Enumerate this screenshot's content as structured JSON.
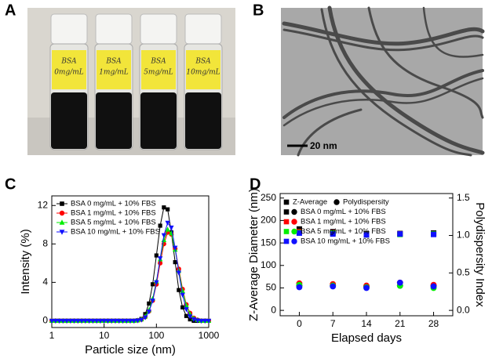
{
  "panel_labels": [
    "A",
    "B",
    "C",
    "D"
  ],
  "vial_labels": [
    [
      "BSA",
      "0mg/mL"
    ],
    [
      "BSA",
      "1mg/mL"
    ],
    [
      "BSA",
      "5mg/mL"
    ],
    [
      "BSA",
      "10mg/mL"
    ]
  ],
  "scale_bar": "20 nm",
  "chart_data": [
    {
      "type": "line",
      "xlabel": "Particle size (nm)",
      "ylabel": "Intensity (%)",
      "xscale": "log",
      "xlim": [
        1,
        1000
      ],
      "xticks": [
        1,
        10,
        100,
        1000
      ],
      "ylim": [
        -0.7,
        13
      ],
      "yticks": [
        0,
        4,
        8,
        12
      ],
      "legend": "upper left",
      "x": [
        1,
        1.18,
        1.39,
        1.64,
        1.93,
        2.28,
        2.68,
        3.16,
        3.73,
        4.39,
        5.18,
        6.11,
        7.2,
        8.48,
        10,
        11.8,
        13.9,
        16.4,
        19.3,
        22.8,
        26.8,
        31.6,
        37.3,
        43.9,
        51.8,
        61.1,
        72,
        84.8,
        100,
        118,
        139,
        164,
        193,
        228,
        268,
        316,
        373,
        439,
        518,
        611,
        720,
        848,
        1000
      ],
      "series": [
        {
          "name": "BSA 0 mg/mL + 10% FBS",
          "color": "#000000",
          "marker": "square",
          "values": [
            0,
            0,
            0,
            0,
            0,
            0,
            0,
            0,
            0,
            0,
            0,
            0,
            0,
            0,
            0,
            0,
            0,
            0,
            0,
            0,
            0,
            0,
            0,
            0.05,
            0.2,
            0.7,
            1.8,
            3.8,
            6.8,
            9.9,
            11.8,
            11.6,
            9.2,
            6.1,
            3.2,
            1.4,
            0.5,
            0.15,
            0,
            0,
            0,
            0,
            0
          ]
        },
        {
          "name": "BSA 1 mg/mL + 10% FBS",
          "color": "#ff0000",
          "marker": "circle",
          "values": [
            0,
            0,
            0,
            0,
            0,
            0,
            0,
            0,
            0,
            0,
            0,
            0,
            0,
            0,
            0,
            0,
            0,
            0,
            0,
            0,
            0,
            0,
            0,
            0.04,
            0.13,
            0.4,
            1.0,
            2.1,
            3.8,
            6.0,
            8.0,
            9.2,
            9.0,
            7.5,
            5.4,
            3.3,
            1.7,
            0.8,
            0.3,
            0.1,
            0,
            0,
            0
          ]
        },
        {
          "name": "BSA 5 mg/mL + 10% FBS",
          "color": "#00ee00",
          "marker": "triangle-up",
          "values": [
            0,
            0,
            0,
            0,
            0,
            0,
            0,
            0,
            0,
            0,
            0,
            0,
            0,
            0,
            0,
            0,
            0,
            0,
            0,
            0,
            0,
            0,
            0,
            0.05,
            0.15,
            0.45,
            1.1,
            2.3,
            4.1,
            6.4,
            8.4,
            9.5,
            9.1,
            7.4,
            5.2,
            3.1,
            1.6,
            0.7,
            0.25,
            0.08,
            0,
            0,
            0
          ]
        },
        {
          "name": "BSA 10 mg/mL + 10% FBS",
          "color": "#1010ff",
          "marker": "triangle-down",
          "values": [
            0,
            0,
            0,
            0,
            0,
            0,
            0,
            0,
            0,
            0,
            0,
            0,
            0,
            0,
            0,
            0,
            0,
            0,
            0,
            0,
            0,
            0,
            0,
            0.03,
            0.1,
            0.35,
            0.95,
            2.1,
            4.0,
            6.5,
            8.9,
            10.2,
            9.7,
            7.6,
            5.0,
            2.7,
            1.2,
            0.45,
            0.15,
            0.04,
            0,
            0,
            0
          ]
        }
      ]
    },
    {
      "type": "scatter",
      "xlabel": "Elapsed days",
      "ylabel": "Z-Average Diameter (nm)",
      "y2label": "Polydispersity Index",
      "legend_markers": [
        "Z-Average",
        "Polydispersity"
      ],
      "legend": "upper left",
      "x": [
        0,
        7,
        14,
        21,
        28
      ],
      "xlim": [
        -4,
        32
      ],
      "xticks": [
        0,
        7,
        14,
        21,
        28
      ],
      "ylim": [
        -12,
        260
      ],
      "yticks": [
        0,
        50,
        100,
        150,
        200,
        250
      ],
      "y2lim": [
        -0.072,
        1.56
      ],
      "y2ticks": [
        {
          "value": 0,
          "label": "0.0"
        },
        0.5,
        {
          "value": 1,
          "label": "1.0"
        },
        1.5
      ],
      "series": [
        {
          "name": "BSA 0 mg/mL + 10% FBS",
          "color": "#000000",
          "values": [
            181,
            175,
            170,
            171,
            172
          ],
          "pdi": [
            0.33,
            0.33,
            0.32,
            0.33,
            0.33
          ]
        },
        {
          "name": "BSA 1 mg/mL + 10% FBS",
          "color": "#ff0000",
          "values": [
            175,
            173,
            168,
            170,
            170
          ],
          "pdi": [
            0.36,
            0.35,
            0.33,
            0.37,
            0.34
          ]
        },
        {
          "name": "BSA 5 mg/mL + 10% FBS",
          "color": "#00ee00",
          "values": [
            173,
            172,
            168,
            169,
            170
          ],
          "pdi": [
            0.34,
            0.33,
            0.31,
            0.33,
            0.3
          ]
        },
        {
          "name": "BSA 10 mg/mL + 10% FBS",
          "color": "#1010ff",
          "values": [
            172,
            170,
            168,
            170,
            169
          ],
          "pdi": [
            0.31,
            0.32,
            0.3,
            0.37,
            0.32
          ]
        }
      ]
    }
  ]
}
